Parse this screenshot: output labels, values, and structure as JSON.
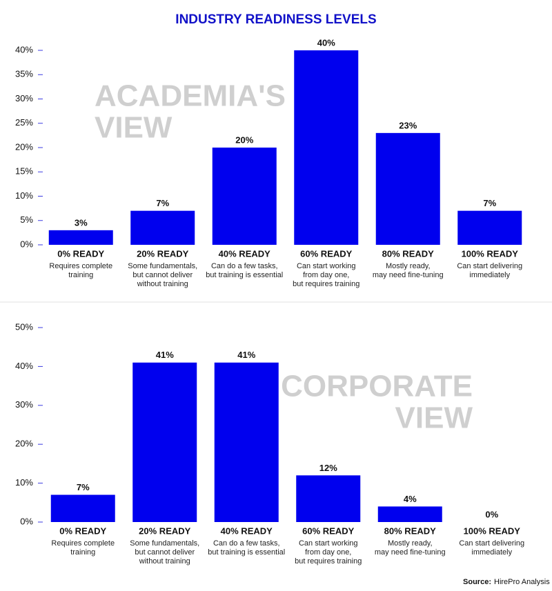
{
  "title": "INDUSTRY READINESS LEVELS",
  "source_label": "Source:",
  "source": "HirePro Analysis",
  "chart_data": [
    {
      "type": "bar",
      "annotation": [
        "ACADEMIA'S",
        "VIEW"
      ],
      "categories": [
        "0% READY",
        "20% READY",
        "40% READY",
        "60% READY",
        "80% READY",
        "100% READY"
      ],
      "descriptions": [
        [
          "Requires complete",
          "training"
        ],
        [
          "Some fundamentals,",
          "but cannot deliver",
          "without training"
        ],
        [
          "Can do a few tasks,",
          "but training is essential"
        ],
        [
          "Can start working",
          "from day one,",
          "but requires training"
        ],
        [
          "Mostly ready,",
          "may need fine-tuning"
        ],
        [
          "Can start delivering",
          "immediately"
        ]
      ],
      "values": [
        3,
        7,
        20,
        40,
        23,
        7
      ],
      "value_labels": [
        "3%",
        "7%",
        "20%",
        "40%",
        "23%",
        "7%"
      ],
      "color": "#0000ee",
      "ylim": [
        0,
        40
      ],
      "yticks": [
        {
          "value": 0,
          "label": "0%"
        },
        {
          "value": 5,
          "label": "5%"
        },
        {
          "value": 10,
          "label": "10%"
        },
        {
          "value": 15,
          "label": "15%"
        },
        {
          "value": 20,
          "label": "20%"
        },
        {
          "value": 25,
          "label": "25%"
        },
        {
          "value": 30,
          "label": "30%"
        },
        {
          "value": 35,
          "label": "35%"
        },
        {
          "value": 40,
          "label": "40%"
        }
      ]
    },
    {
      "type": "bar",
      "annotation": [
        "CORPORATE",
        "VIEW"
      ],
      "categories": [
        "0% READY",
        "20% READY",
        "40% READY",
        "60% READY",
        "80% READY",
        "100% READY"
      ],
      "descriptions": [
        [
          "Requires complete",
          "training"
        ],
        [
          "Some fundamentals,",
          "but cannot deliver",
          "without training"
        ],
        [
          "Can do a few tasks,",
          "but training is essential"
        ],
        [
          "Can start working",
          "from day one,",
          "but requires training"
        ],
        [
          "Mostly ready,",
          "may need fine-tuning"
        ],
        [
          "Can start delivering",
          "immediately"
        ]
      ],
      "values": [
        7,
        41,
        41,
        12,
        4,
        0
      ],
      "value_labels": [
        "7%",
        "41%",
        "41%",
        "12%",
        "4%",
        "0%"
      ],
      "color": "#0000ee",
      "ylim": [
        0,
        50
      ],
      "yticks": [
        {
          "value": 0,
          "label": "0%"
        },
        {
          "value": 10,
          "label": "10%"
        },
        {
          "value": 20,
          "label": "20%"
        },
        {
          "value": 30,
          "label": "30%"
        },
        {
          "value": 40,
          "label": "40%"
        },
        {
          "value": 50,
          "label": "50%"
        }
      ]
    }
  ]
}
